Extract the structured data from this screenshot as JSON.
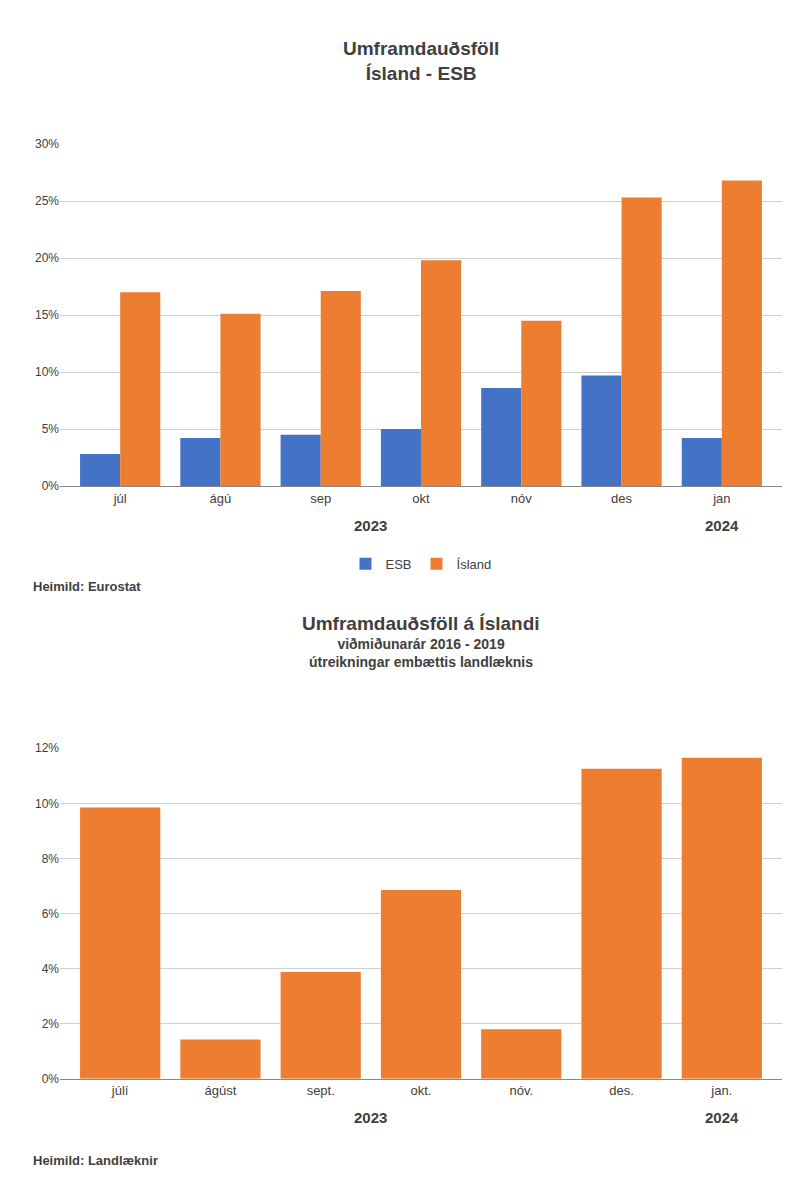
{
  "chart_data": [
    {
      "type": "bar",
      "title": [
        "Umframdauðsföll",
        "Ísland - ESB"
      ],
      "categories": [
        "júl",
        "ágú",
        "sep",
        "okt",
        "nóv",
        "des",
        "jan"
      ],
      "series": [
        {
          "name": "ESB",
          "color": "#4472C4",
          "values": [
            2.8,
            4.2,
            4.5,
            5.0,
            8.6,
            9.7,
            4.2
          ]
        },
        {
          "name": "Ísland",
          "color": "#ED7D31",
          "values": [
            17.0,
            15.1,
            17.1,
            19.8,
            14.5,
            25.3,
            26.8
          ]
        }
      ],
      "ylim": [
        0,
        30
      ],
      "yticks": [
        {
          "value": 0,
          "label": "0%"
        },
        {
          "value": 5,
          "label": "5%"
        },
        {
          "value": 10,
          "label": "10%"
        },
        {
          "value": 15,
          "label": "15%"
        },
        {
          "value": 20,
          "label": "20%"
        },
        {
          "value": 25,
          "label": "25%"
        },
        {
          "value": 30,
          "label": "30%"
        }
      ],
      "annotations": [
        {
          "text": "2023",
          "span": [
            "júl",
            "des"
          ]
        },
        {
          "text": "2024",
          "span": [
            "jan",
            "jan"
          ]
        }
      ],
      "source": "Heimild: Eurostat",
      "grid": true,
      "legend": "bottom"
    },
    {
      "type": "bar",
      "title": [
        "Umframdauðsföll á Íslandi"
      ],
      "subtitle": [
        "viðmiðunarár 2016 - 2019",
        "útreikningar embættis landlæknis"
      ],
      "categories": [
        "júlí",
        "ágúst",
        "sept.",
        "okt.",
        "nóv.",
        "des.",
        "jan."
      ],
      "values": [
        9.85,
        1.43,
        3.88,
        6.85,
        1.8,
        11.25,
        11.65
      ],
      "color": "#ED7D31",
      "ylim": [
        0,
        12
      ],
      "yticks": [
        {
          "value": 0,
          "label": "0%"
        },
        {
          "value": 2,
          "label": "2%"
        },
        {
          "value": 4,
          "label": "4%"
        },
        {
          "value": 6,
          "label": "6%"
        },
        {
          "value": 8,
          "label": "8%"
        },
        {
          "value": 10,
          "label": "10%"
        },
        {
          "value": 12,
          "label": "12%"
        }
      ],
      "annotations": [
        {
          "text": "2023",
          "span": [
            "júlí",
            "des."
          ]
        },
        {
          "text": "2024",
          "span": [
            "jan.",
            "jan."
          ]
        }
      ],
      "source": "Heimild: Landlæknir",
      "grid": true
    }
  ]
}
